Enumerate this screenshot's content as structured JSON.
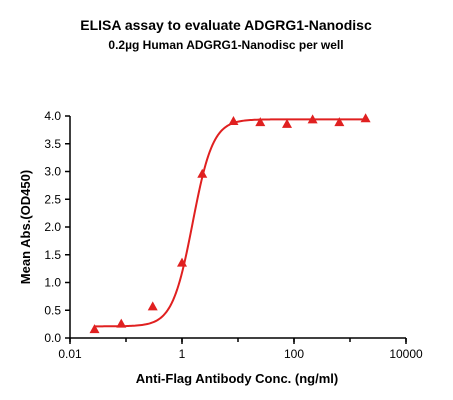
{
  "chart_data": {
    "type": "scatter",
    "title": "ELISA assay to evaluate ADGRG1-Nanodisc",
    "subtitle": "0.2µg Human ADGRG1-Nanodisc per well",
    "xlabel": "Anti-Flag Antibody Conc. (ng/ml)",
    "ylabel": "Mean Abs.(OD450)",
    "xscale": "log",
    "xlim": [
      0.01,
      10000
    ],
    "ylim": [
      0.0,
      4.0
    ],
    "x_ticks": [
      0.01,
      1,
      100,
      10000
    ],
    "x_tick_labels": [
      "0.01",
      "1",
      "100",
      "10000"
    ],
    "y_ticks": [
      0.0,
      0.5,
      1.0,
      1.5,
      2.0,
      2.5,
      3.0,
      3.5,
      4.0
    ],
    "y_tick_labels": [
      "0.0",
      "0.5",
      "1.0",
      "1.5",
      "2.0",
      "2.5",
      "3.0",
      "3.5",
      "4.0"
    ],
    "grid": false,
    "legend": "none",
    "marker": "triangle",
    "color": "#e02020",
    "series": [
      {
        "x": [
          0.0274,
          0.0823,
          0.3,
          1.0,
          2.3,
          8.3,
          25,
          75,
          215,
          645,
          1900
        ],
        "y": [
          0.15,
          0.25,
          0.56,
          1.35,
          2.95,
          3.9,
          3.88,
          3.85,
          3.93,
          3.88,
          3.95
        ]
      }
    ],
    "fit": {
      "model": "4PL",
      "bottom": 0.21,
      "top": 3.94,
      "ec50": 1.55,
      "hill": 2.4
    }
  }
}
